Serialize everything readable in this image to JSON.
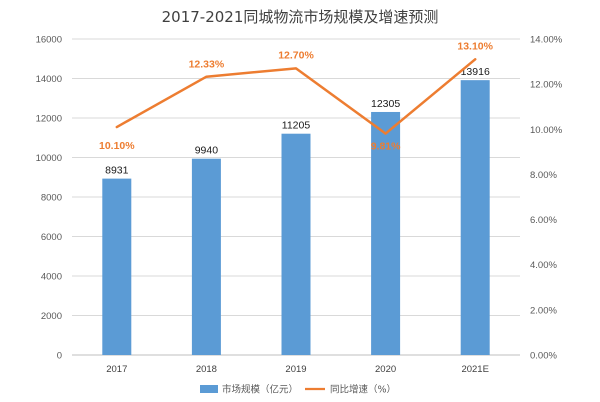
{
  "chart_data": {
    "type": "bar+line",
    "title": "2017-2021同城物流市场规模及增速预测",
    "categories": [
      "2017",
      "2018",
      "2019",
      "2020",
      "2021E"
    ],
    "series": [
      {
        "name": "市场规模（亿元）",
        "type": "bar",
        "axis": "left",
        "color": "#5B9BD5",
        "values": [
          8931,
          9940,
          11205,
          12305,
          13916
        ],
        "labels": [
          "8931",
          "9940",
          "11205",
          "12305",
          "13916"
        ]
      },
      {
        "name": "同比增速（%）",
        "type": "line",
        "axis": "right",
        "color": "#ED7D31",
        "values": [
          10.1,
          12.33,
          12.7,
          9.81,
          13.1
        ],
        "labels": [
          "10.10%",
          "12.33%",
          "12.70%",
          "9.81%",
          "13.10%"
        ]
      }
    ],
    "y_left": {
      "min": 0,
      "max": 16000,
      "ticks": [
        "0",
        "2000",
        "4000",
        "6000",
        "8000",
        "10000",
        "12000",
        "14000",
        "16000"
      ]
    },
    "y_right": {
      "min": 0,
      "max": 14,
      "ticks": [
        "0.00%",
        "2.00%",
        "4.00%",
        "6.00%",
        "8.00%",
        "10.00%",
        "12.00%",
        "14.00%"
      ]
    },
    "grid": true,
    "legend_position": "bottom"
  }
}
